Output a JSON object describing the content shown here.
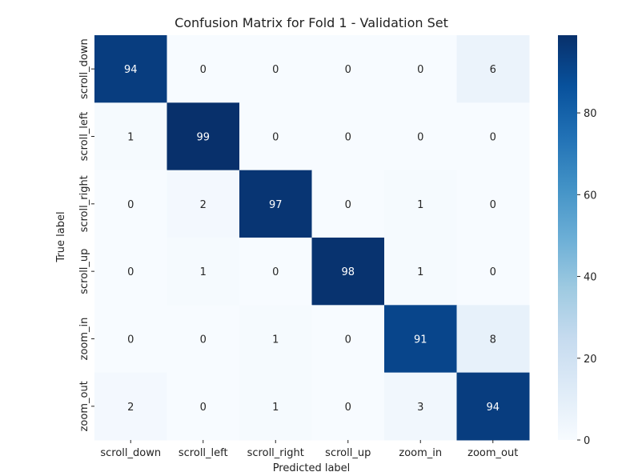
{
  "chart_data": {
    "type": "heatmap",
    "title": "Confusion Matrix for Fold 1 - Validation Set",
    "xlabel": "Predicted label",
    "ylabel": "True label",
    "x_categories": [
      "scroll_down",
      "scroll_left",
      "scroll_right",
      "scroll_up",
      "zoom_in",
      "zoom_out"
    ],
    "y_categories": [
      "scroll_down",
      "scroll_left",
      "scroll_right",
      "scroll_up",
      "zoom_in",
      "zoom_out"
    ],
    "values": [
      [
        94,
        0,
        0,
        0,
        0,
        6
      ],
      [
        1,
        99,
        0,
        0,
        0,
        0
      ],
      [
        0,
        2,
        97,
        0,
        1,
        0
      ],
      [
        0,
        1,
        0,
        98,
        1,
        0
      ],
      [
        0,
        0,
        1,
        0,
        91,
        8
      ],
      [
        2,
        0,
        1,
        0,
        3,
        94
      ]
    ],
    "colorbar": {
      "min": 0,
      "max": 99,
      "ticks": [
        0,
        20,
        40,
        60,
        80
      ],
      "colormap": "Blues"
    },
    "grid": false
  }
}
